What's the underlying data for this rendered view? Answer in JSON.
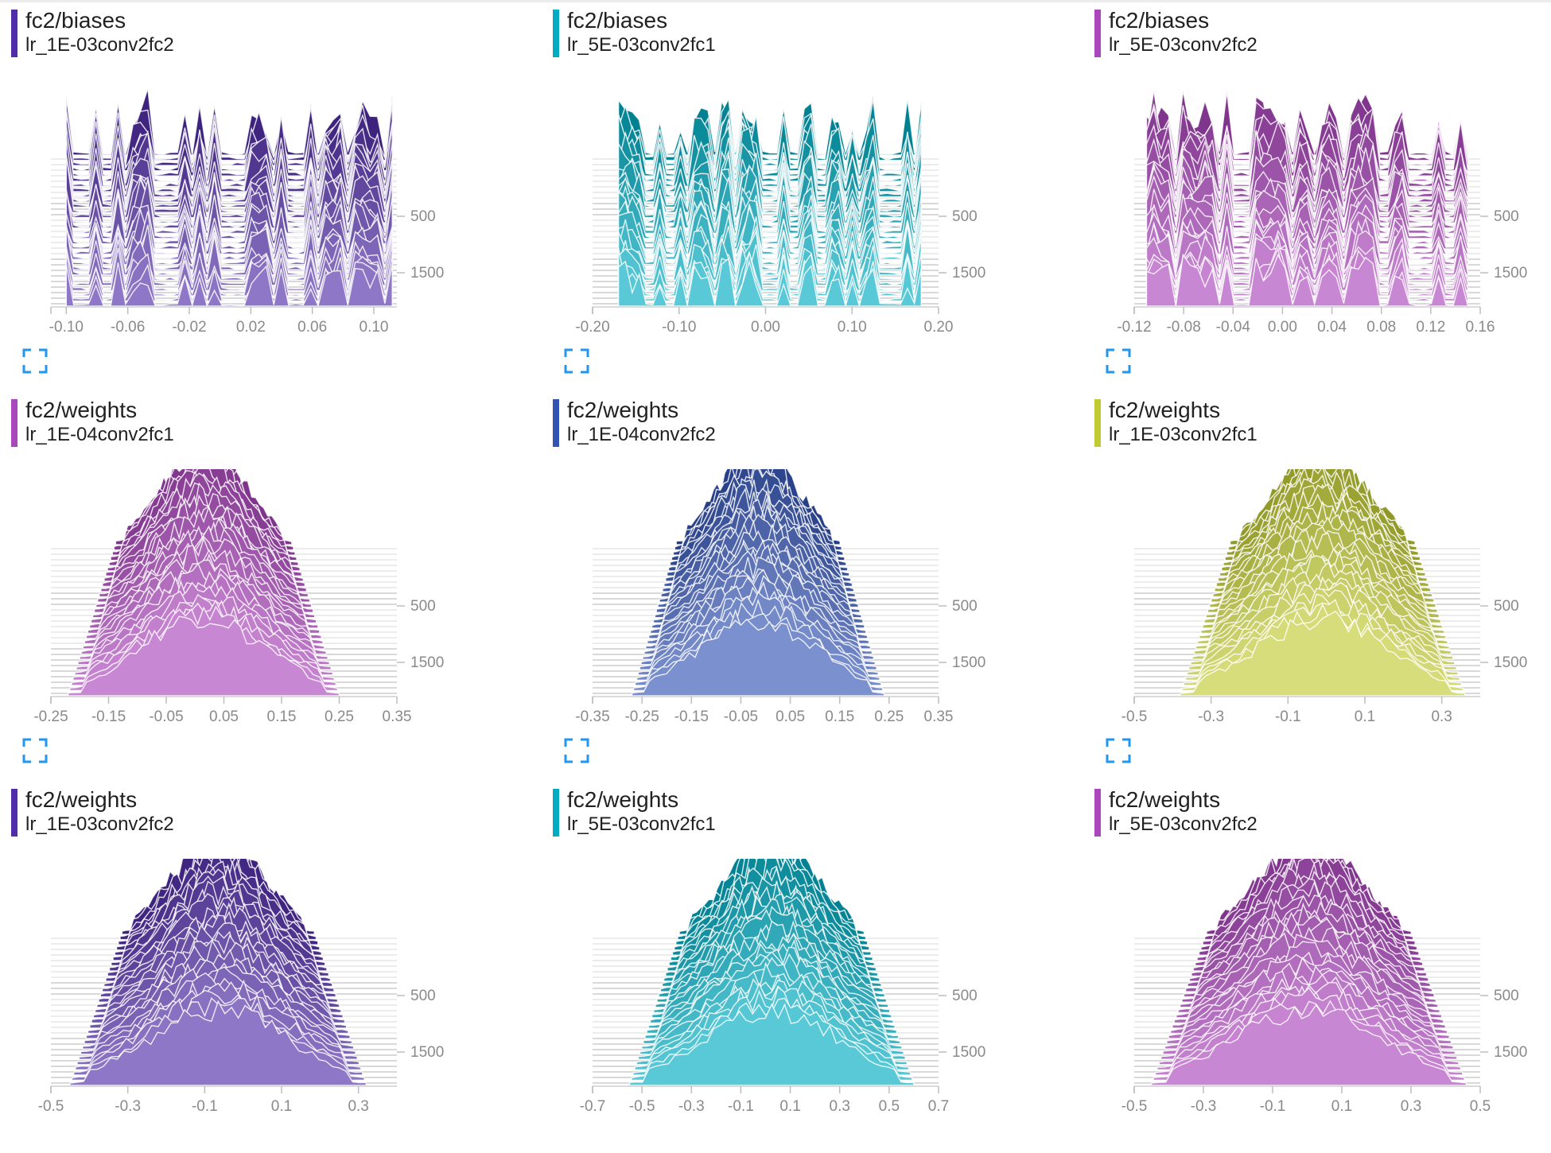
{
  "charts": [
    {
      "tag": "fc2/biases",
      "run": "lr_1E-03conv2fc2",
      "color": "#512da8",
      "kind": "biases",
      "seed": 11,
      "x_ticks": [
        "-0.10",
        "-0.06",
        "-0.02",
        "0.02",
        "0.06",
        "0.10"
      ],
      "xlim": [
        -0.11,
        0.115
      ],
      "support": [
        -0.1,
        0.112
      ],
      "y_ticks": [
        "500",
        "1500"
      ]
    },
    {
      "tag": "fc2/biases",
      "run": "lr_5E-03conv2fc1",
      "color": "#00acc1",
      "kind": "biases",
      "seed": 23,
      "x_ticks": [
        "-0.20",
        "-0.10",
        "0.00",
        "0.10",
        "0.20"
      ],
      "xlim": [
        -0.2,
        0.2
      ],
      "support": [
        -0.17,
        0.18
      ],
      "y_ticks": [
        "500",
        "1500"
      ]
    },
    {
      "tag": "fc2/biases",
      "run": "lr_5E-03conv2fc2",
      "color": "#ab47bc",
      "kind": "biases",
      "seed": 37,
      "x_ticks": [
        "-0.12",
        "-0.08",
        "-0.04",
        "0.00",
        "0.04",
        "0.08",
        "0.12",
        "0.16"
      ],
      "xlim": [
        -0.12,
        0.16
      ],
      "support": [
        -0.11,
        0.15
      ],
      "y_ticks": [
        "500",
        "1500"
      ]
    },
    {
      "tag": "fc2/weights",
      "run": "lr_1E-04conv2fc1",
      "color": "#ab47bc",
      "kind": "weights",
      "seed": 41,
      "x_ticks": [
        "-0.25",
        "-0.15",
        "-0.05",
        "0.05",
        "0.15",
        "0.25",
        "0.35"
      ],
      "xlim": [
        -0.25,
        0.35
      ],
      "support": [
        -0.22,
        0.25
      ],
      "y_ticks": [
        "500",
        "1500"
      ]
    },
    {
      "tag": "fc2/weights",
      "run": "lr_1E-04conv2fc2",
      "color": "#3454b4",
      "kind": "weights",
      "seed": 53,
      "x_ticks": [
        "-0.35",
        "-0.25",
        "-0.15",
        "-0.05",
        "0.05",
        "0.15",
        "0.25",
        "0.35"
      ],
      "xlim": [
        -0.35,
        0.35
      ],
      "support": [
        -0.27,
        0.24
      ],
      "y_ticks": [
        "500",
        "1500"
      ]
    },
    {
      "tag": "fc2/weights",
      "run": "lr_1E-03conv2fc1",
      "color": "#c0ca33",
      "kind": "weights",
      "seed": 67,
      "x_ticks": [
        "-0.5",
        "-0.3",
        "-0.1",
        "0.1",
        "0.3"
      ],
      "xlim": [
        -0.5,
        0.4
      ],
      "support": [
        -0.38,
        0.36
      ],
      "y_ticks": [
        "500",
        "1500"
      ]
    },
    {
      "tag": "fc2/weights",
      "run": "lr_1E-03conv2fc2",
      "color": "#512da8",
      "kind": "weights",
      "seed": 71,
      "x_ticks": [
        "-0.5",
        "-0.3",
        "-0.1",
        "0.1",
        "0.3"
      ],
      "xlim": [
        -0.5,
        0.4
      ],
      "support": [
        -0.45,
        0.32
      ],
      "y_ticks": [
        "500",
        "1500"
      ]
    },
    {
      "tag": "fc2/weights",
      "run": "lr_5E-03conv2fc1",
      "color": "#00acc1",
      "kind": "weights",
      "seed": 83,
      "x_ticks": [
        "-0.7",
        "-0.5",
        "-0.3",
        "-0.1",
        "0.1",
        "0.3",
        "0.5",
        "0.7"
      ],
      "xlim": [
        -0.7,
        0.7
      ],
      "support": [
        -0.55,
        0.6
      ],
      "y_ticks": [
        "500",
        "1500"
      ]
    },
    {
      "tag": "fc2/weights",
      "run": "lr_5E-03conv2fc2",
      "color": "#ab47bc",
      "kind": "weights",
      "seed": 97,
      "x_ticks": [
        "-0.5",
        "-0.3",
        "-0.1",
        "0.1",
        "0.3",
        "0.5"
      ],
      "xlim": [
        -0.5,
        0.5
      ],
      "support": [
        -0.45,
        0.46
      ],
      "y_ticks": [
        "500",
        "1500"
      ]
    }
  ],
  "icons": {
    "expand": "fullscreen-icon"
  },
  "chart_data": [
    {
      "type": "area",
      "subtype": "histogram",
      "title": "fc2/biases",
      "legend": [
        "lr_1E-03conv2fc2"
      ],
      "x_ticks": [
        "-0.10",
        "-0.06",
        "-0.02",
        "0.02",
        "0.06",
        "0.10"
      ],
      "y_ticks": [
        "500",
        "1500"
      ],
      "xlim": [
        -0.11,
        0.115
      ]
    },
    {
      "type": "area",
      "subtype": "histogram",
      "title": "fc2/biases",
      "legend": [
        "lr_5E-03conv2fc1"
      ],
      "x_ticks": [
        "-0.20",
        "-0.10",
        "0.00",
        "0.10",
        "0.20"
      ],
      "y_ticks": [
        "500",
        "1500"
      ],
      "xlim": [
        -0.2,
        0.2
      ]
    },
    {
      "type": "area",
      "subtype": "histogram",
      "title": "fc2/biases",
      "legend": [
        "lr_5E-03conv2fc2"
      ],
      "x_ticks": [
        "-0.12",
        "-0.08",
        "-0.04",
        "0.00",
        "0.04",
        "0.08",
        "0.12",
        "0.16"
      ],
      "y_ticks": [
        "500",
        "1500"
      ],
      "xlim": [
        -0.12,
        0.16
      ]
    },
    {
      "type": "area",
      "subtype": "histogram",
      "title": "fc2/weights",
      "legend": [
        "lr_1E-04conv2fc1"
      ],
      "x_ticks": [
        "-0.25",
        "-0.15",
        "-0.05",
        "0.05",
        "0.15",
        "0.25",
        "0.35"
      ],
      "y_ticks": [
        "500",
        "1500"
      ],
      "xlim": [
        -0.25,
        0.35
      ]
    },
    {
      "type": "area",
      "subtype": "histogram",
      "title": "fc2/weights",
      "legend": [
        "lr_1E-04conv2fc2"
      ],
      "x_ticks": [
        "-0.35",
        "-0.25",
        "-0.15",
        "-0.05",
        "0.05",
        "0.15",
        "0.25",
        "0.35"
      ],
      "y_ticks": [
        "500",
        "1500"
      ],
      "xlim": [
        -0.35,
        0.35
      ]
    },
    {
      "type": "area",
      "subtype": "histogram",
      "title": "fc2/weights",
      "legend": [
        "lr_1E-03conv2fc1"
      ],
      "x_ticks": [
        "-0.5",
        "-0.3",
        "-0.1",
        "0.1",
        "0.3"
      ],
      "y_ticks": [
        "500",
        "1500"
      ],
      "xlim": [
        -0.5,
        0.4
      ]
    },
    {
      "type": "area",
      "subtype": "histogram",
      "title": "fc2/weights",
      "legend": [
        "lr_1E-03conv2fc2"
      ],
      "x_ticks": [
        "-0.5",
        "-0.3",
        "-0.1",
        "0.1",
        "0.3"
      ],
      "y_ticks": [
        "500",
        "1500"
      ],
      "xlim": [
        -0.5,
        0.4
      ]
    },
    {
      "type": "area",
      "subtype": "histogram",
      "title": "fc2/weights",
      "legend": [
        "lr_5E-03conv2fc1"
      ],
      "x_ticks": [
        "-0.7",
        "-0.5",
        "-0.3",
        "-0.1",
        "0.1",
        "0.3",
        "0.5",
        "0.7"
      ],
      "y_ticks": [
        "500",
        "1500"
      ],
      "xlim": [
        -0.7,
        0.7
      ]
    },
    {
      "type": "area",
      "subtype": "histogram",
      "title": "fc2/weights",
      "legend": [
        "lr_5E-03conv2fc2"
      ],
      "x_ticks": [
        "-0.5",
        "-0.3",
        "-0.1",
        "0.1",
        "0.3",
        "0.5"
      ],
      "y_ticks": [
        "500",
        "1500"
      ],
      "xlim": [
        -0.5,
        0.5
      ]
    }
  ]
}
